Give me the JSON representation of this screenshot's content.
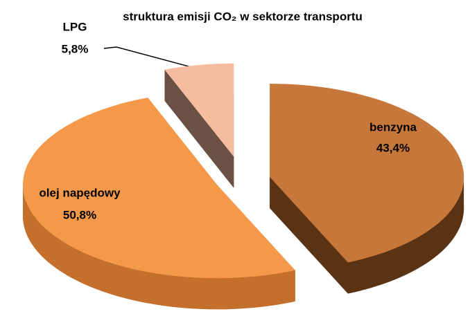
{
  "chart_data": {
    "type": "pie",
    "title": "struktura emisji CO₂ w sektorze transportu",
    "categories": [
      "benzyna",
      "olej napędowy",
      "LPG"
    ],
    "values": [
      43.4,
      50.8,
      5.8
    ],
    "value_labels": [
      "43,4%",
      "50,8%",
      "5,8%"
    ],
    "colors": [
      "#c8773a",
      "#f4994a",
      "#f6bca0"
    ],
    "side_colors": [
      "#5a3214",
      "#c46f2c",
      "#6b5044"
    ]
  }
}
